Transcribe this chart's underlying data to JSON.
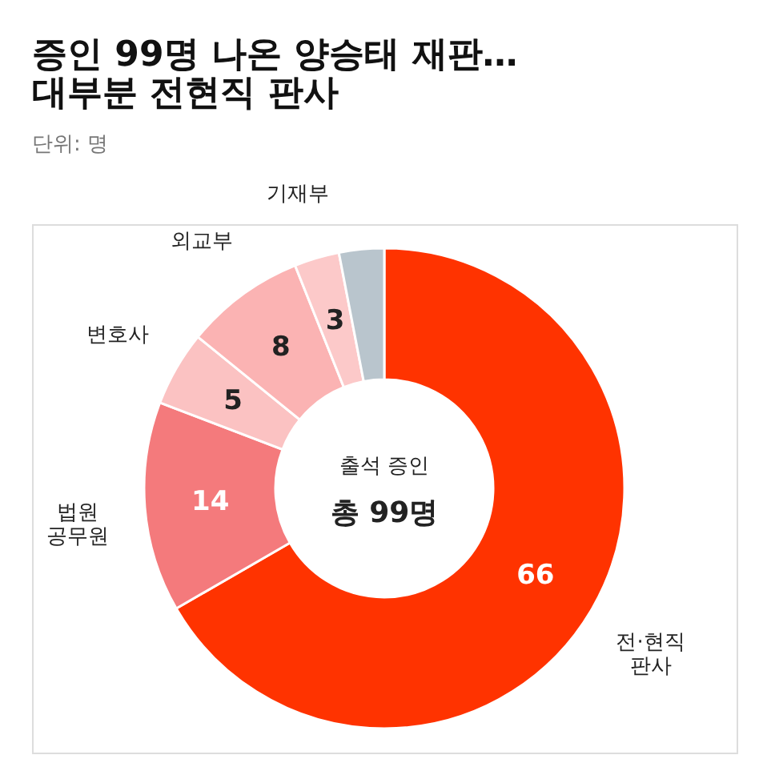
{
  "chart_data": {
    "type": "donut",
    "title": [
      "증인 99명 나온 양승태 재판…",
      "대부분 전현직 판사"
    ],
    "subtitle": "단위: 명",
    "categories": [
      "전·현직\n판사",
      "법원\n공무원",
      "변호사",
      "외교부",
      "기재부",
      null
    ],
    "values": [
      66,
      14,
      5,
      8,
      3,
      3
    ],
    "colors": [
      "#ff3300",
      "#f47a7c",
      "#fbc2c2",
      "#fbb3b3",
      "#fcc9c9",
      "#b9c5cd"
    ],
    "value_labels": [
      "66",
      "14",
      "5",
      "8",
      "3",
      null
    ],
    "annotations": [
      "출석 증인",
      "총 99명"
    ],
    "legend": false
  }
}
